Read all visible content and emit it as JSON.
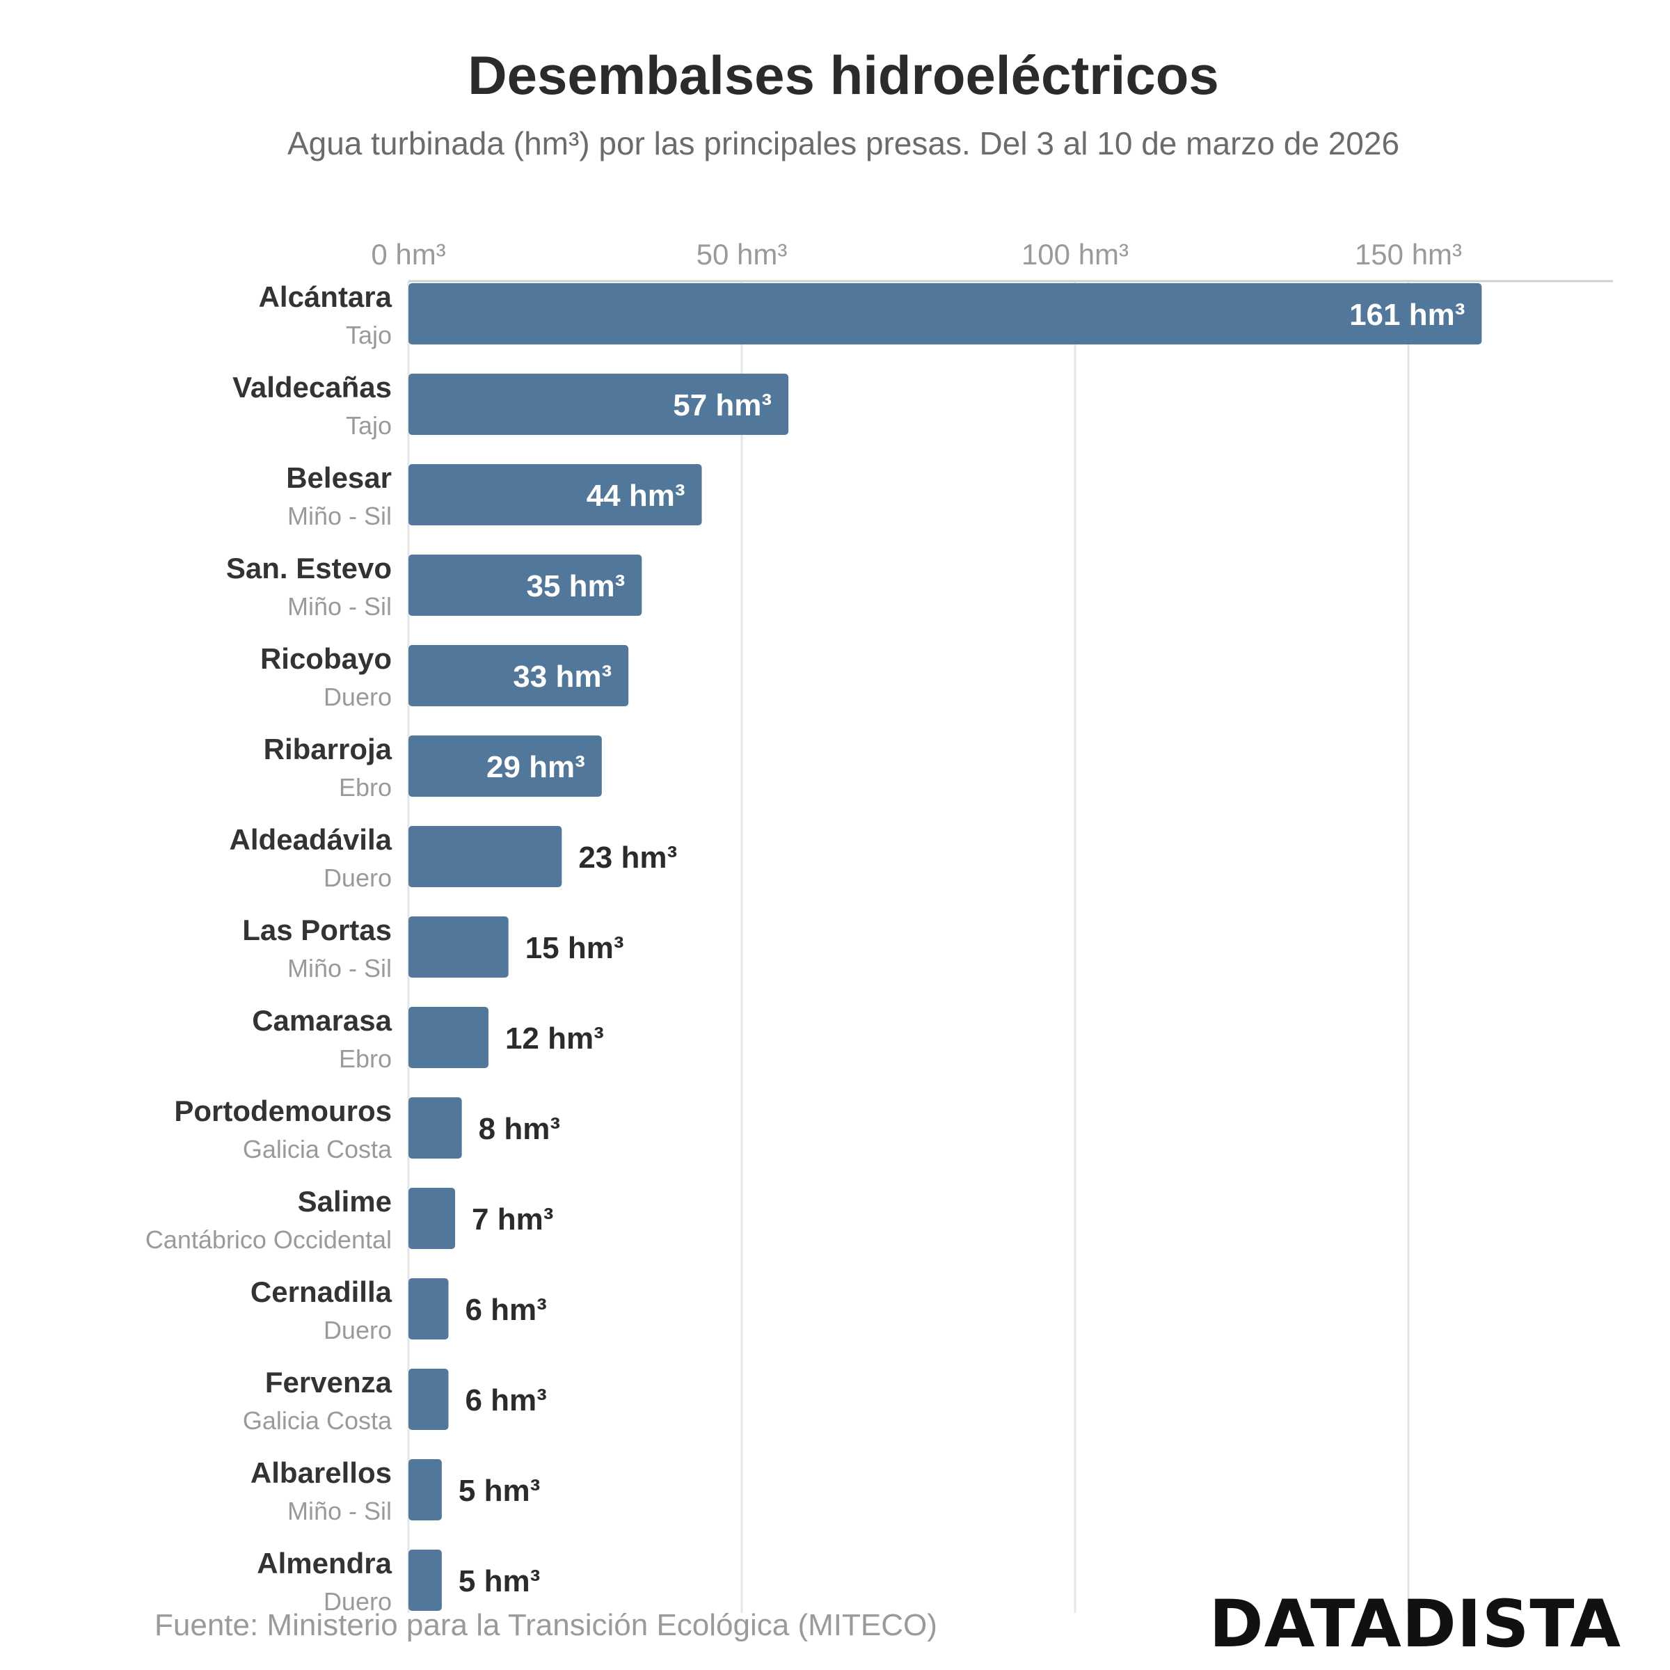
{
  "chart_data": {
    "type": "bar",
    "orientation": "horizontal",
    "title": "Desembalses hidroeléctricos",
    "subtitle": "Agua turbinada (hm³) por las principales presas. Del 3 al 10 de marzo de 2026",
    "unit": "hm³",
    "xlim": [
      0,
      180
    ],
    "ticks": [
      {
        "value": 0,
        "label": "0 hm³"
      },
      {
        "value": 50,
        "label": "50 hm³"
      },
      {
        "value": 100,
        "label": "100 hm³"
      },
      {
        "value": 150,
        "label": "150 hm³"
      }
    ],
    "grid": true,
    "bar_color": "#51779b",
    "categories": [
      {
        "name": "Alcántara",
        "basin": "Tajo",
        "value": 161,
        "label": "161 hm³"
      },
      {
        "name": "Valdecañas",
        "basin": "Tajo",
        "value": 57,
        "label": "57 hm³"
      },
      {
        "name": "Belesar",
        "basin": "Miño - Sil",
        "value": 44,
        "label": "44 hm³"
      },
      {
        "name": "San. Estevo",
        "basin": "Miño - Sil",
        "value": 35,
        "label": "35 hm³"
      },
      {
        "name": "Ricobayo",
        "basin": "Duero",
        "value": 33,
        "label": "33 hm³"
      },
      {
        "name": "Ribarroja",
        "basin": "Ebro",
        "value": 29,
        "label": "29 hm³"
      },
      {
        "name": "Aldeadávila",
        "basin": "Duero",
        "value": 23,
        "label": "23 hm³"
      },
      {
        "name": "Las Portas",
        "basin": "Miño - Sil",
        "value": 15,
        "label": "15 hm³"
      },
      {
        "name": "Camarasa",
        "basin": "Ebro",
        "value": 12,
        "label": "12 hm³"
      },
      {
        "name": "Portodemouros",
        "basin": "Galicia Costa",
        "value": 8,
        "label": "8 hm³"
      },
      {
        "name": "Salime",
        "basin": "Cantábrico Occidental",
        "value": 7,
        "label": "7 hm³"
      },
      {
        "name": "Cernadilla",
        "basin": "Duero",
        "value": 6,
        "label": "6 hm³"
      },
      {
        "name": "Fervenza",
        "basin": "Galicia Costa",
        "value": 6,
        "label": "6 hm³"
      },
      {
        "name": "Albarellos",
        "basin": "Miño - Sil",
        "value": 5,
        "label": "5 hm³"
      },
      {
        "name": "Almendra",
        "basin": "Duero",
        "value": 5,
        "label": "5 hm³"
      }
    ]
  },
  "footer": {
    "source": "Fuente: Ministerio para la Transición Ecológica (MITECO)",
    "brand": "DATADISTA"
  }
}
